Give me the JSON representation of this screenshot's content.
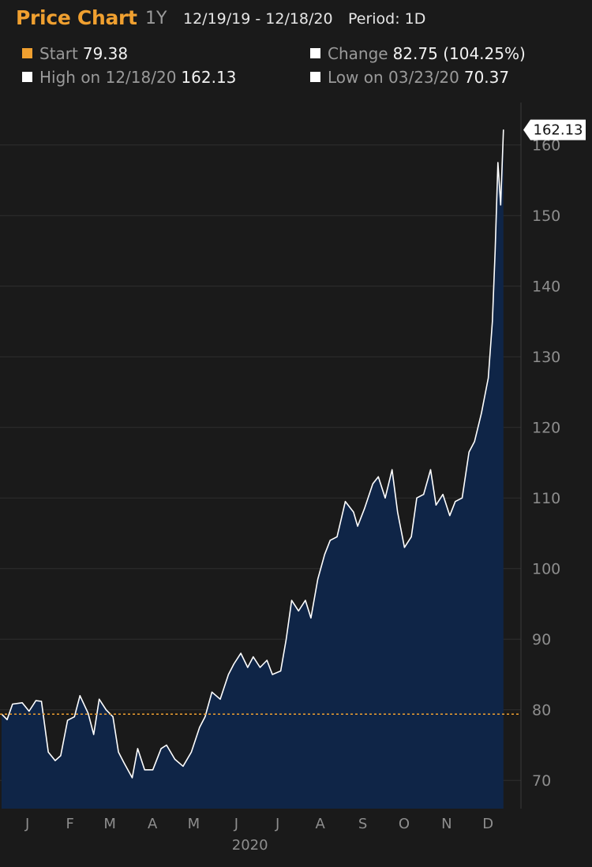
{
  "header": {
    "title": "Price Chart",
    "range_label": "1Y",
    "date_range": "12/19/19 - 12/18/20",
    "period": "Period: 1D"
  },
  "stats": {
    "start": {
      "label": "Start",
      "value": "79.38",
      "color": "#f0a030"
    },
    "change": {
      "label": "Change",
      "value": "82.75 (104.25%)",
      "color": "#ffffff"
    },
    "high": {
      "label": "High on 12/18/20",
      "value": "162.13",
      "color": "#ffffff"
    },
    "low": {
      "label": "Low on 03/23/20",
      "value": "70.37",
      "color": "#ffffff"
    }
  },
  "colors": {
    "background": "#1a1a1a",
    "area_fill": "#0f2547",
    "line": "#ffffff",
    "start_line": "#f0a030",
    "grid": "#2e2e2e"
  },
  "chart_data": {
    "type": "area",
    "title": "Price Chart",
    "x_axis_labels": [
      "J",
      "F",
      "M",
      "A",
      "M",
      "J",
      "J",
      "A",
      "S",
      "O",
      "N",
      "D"
    ],
    "x_year_label": "2020",
    "y_ticks": [
      70,
      80,
      90,
      100,
      110,
      120,
      130,
      140,
      150,
      160
    ],
    "ylim": [
      66,
      166
    ],
    "start_reference": 79.38,
    "last_value_label": "162.13",
    "grid": true,
    "series": [
      {
        "values": [
          [
            "2019-12-19",
            79.4
          ],
          [
            "2019-12-23",
            78.6
          ],
          [
            "2019-12-27",
            80.8
          ],
          [
            "2020-01-03",
            81.0
          ],
          [
            "2020-01-08",
            79.8
          ],
          [
            "2020-01-13",
            81.3
          ],
          [
            "2020-01-17",
            81.2
          ],
          [
            "2020-01-22",
            74.0
          ],
          [
            "2020-01-27",
            72.8
          ],
          [
            "2020-01-31",
            73.5
          ],
          [
            "2020-02-05",
            78.5
          ],
          [
            "2020-02-10",
            79.0
          ],
          [
            "2020-02-14",
            82.0
          ],
          [
            "2020-02-20",
            79.5
          ],
          [
            "2020-02-24",
            76.5
          ],
          [
            "2020-02-28",
            81.5
          ],
          [
            "2020-03-04",
            80.0
          ],
          [
            "2020-03-09",
            79.0
          ],
          [
            "2020-03-13",
            74.0
          ],
          [
            "2020-03-17",
            72.5
          ],
          [
            "2020-03-23",
            70.37
          ],
          [
            "2020-03-27",
            74.5
          ],
          [
            "2020-04-01",
            71.5
          ],
          [
            "2020-04-07",
            71.5
          ],
          [
            "2020-04-13",
            74.5
          ],
          [
            "2020-04-17",
            75.0
          ],
          [
            "2020-04-23",
            73.0
          ],
          [
            "2020-04-29",
            72.0
          ],
          [
            "2020-05-05",
            74.0
          ],
          [
            "2020-05-11",
            77.5
          ],
          [
            "2020-05-15",
            79.0
          ],
          [
            "2020-05-20",
            82.5
          ],
          [
            "2020-05-26",
            81.5
          ],
          [
            "2020-06-01",
            85.0
          ],
          [
            "2020-06-05",
            86.5
          ],
          [
            "2020-06-10",
            88.0
          ],
          [
            "2020-06-15",
            86.0
          ],
          [
            "2020-06-19",
            87.5
          ],
          [
            "2020-06-24",
            86.0
          ],
          [
            "2020-06-29",
            87.0
          ],
          [
            "2020-07-03",
            85.0
          ],
          [
            "2020-07-09",
            85.5
          ],
          [
            "2020-07-13",
            90.0
          ],
          [
            "2020-07-17",
            95.5
          ],
          [
            "2020-07-22",
            94.0
          ],
          [
            "2020-07-27",
            95.5
          ],
          [
            "2020-07-31",
            93.0
          ],
          [
            "2020-08-05",
            98.5
          ],
          [
            "2020-08-10",
            102.0
          ],
          [
            "2020-08-14",
            104.0
          ],
          [
            "2020-08-19",
            104.5
          ],
          [
            "2020-08-25",
            109.5
          ],
          [
            "2020-08-31",
            108.0
          ],
          [
            "2020-09-03",
            106.0
          ],
          [
            "2020-09-08",
            108.5
          ],
          [
            "2020-09-14",
            112.0
          ],
          [
            "2020-09-18",
            113.0
          ],
          [
            "2020-09-23",
            110.0
          ],
          [
            "2020-09-28",
            114.0
          ],
          [
            "2020-10-02",
            108.0
          ],
          [
            "2020-10-07",
            103.0
          ],
          [
            "2020-10-12",
            104.5
          ],
          [
            "2020-10-16",
            110.0
          ],
          [
            "2020-10-21",
            110.5
          ],
          [
            "2020-10-26",
            114.0
          ],
          [
            "2020-10-30",
            109.0
          ],
          [
            "2020-11-04",
            110.5
          ],
          [
            "2020-11-09",
            107.5
          ],
          [
            "2020-11-13",
            109.5
          ],
          [
            "2020-11-18",
            110.0
          ],
          [
            "2020-11-23",
            116.5
          ],
          [
            "2020-11-27",
            118.0
          ],
          [
            "2020-12-02",
            122.0
          ],
          [
            "2020-12-07",
            127.0
          ],
          [
            "2020-12-10",
            135.0
          ],
          [
            "2020-12-12",
            145.0
          ],
          [
            "2020-12-14",
            157.5
          ],
          [
            "2020-12-16",
            151.5
          ],
          [
            "2020-12-18",
            162.13
          ]
        ]
      }
    ]
  }
}
